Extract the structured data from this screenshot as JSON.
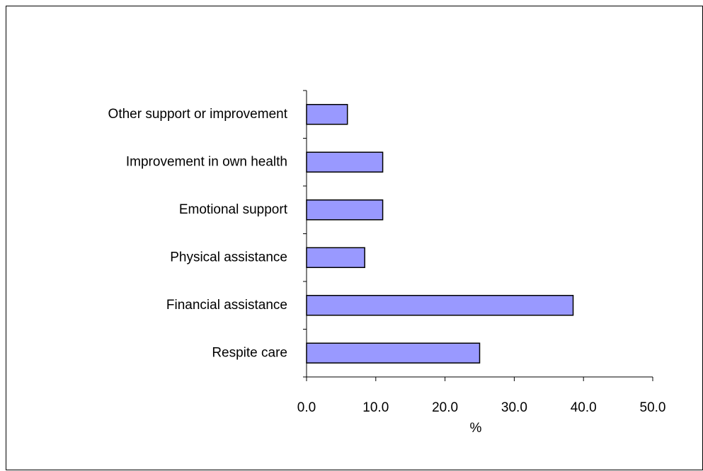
{
  "chart_data": {
    "type": "hbar",
    "xlabel": "%",
    "categories": [
      "Respite care",
      "Financial assistance",
      "Physical assistance",
      "Emotional support",
      "Improvement in own health",
      "Other support or improvement"
    ],
    "values": [
      25.0,
      38.5,
      8.4,
      11.0,
      11.0,
      5.9
    ],
    "color": "#9999ff",
    "xlim": [
      0,
      50
    ],
    "xticks": [
      {
        "value": 0,
        "label": "0.0"
      },
      {
        "value": 10,
        "label": "10.0"
      },
      {
        "value": 20,
        "label": "20.0"
      },
      {
        "value": 30,
        "label": "30.0"
      },
      {
        "value": 40,
        "label": "40.0"
      },
      {
        "value": 50,
        "label": "50.0"
      }
    ]
  }
}
